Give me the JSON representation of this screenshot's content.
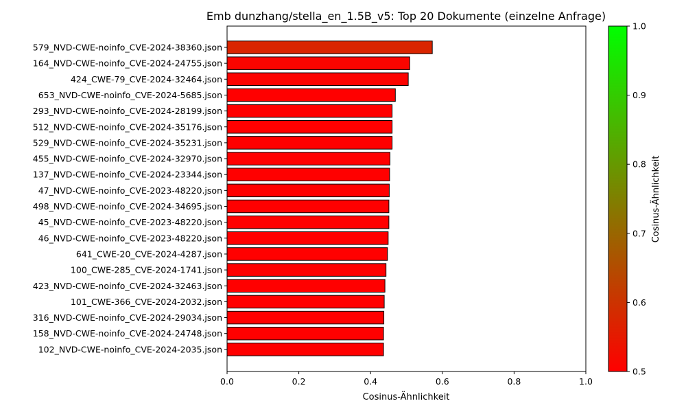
{
  "chart_data": {
    "type": "bar",
    "orientation": "horizontal",
    "title": "Emb dunzhang/stella_en_1.5B_v5: Top 20 Dokumente (einzelne Anfrage)",
    "xlabel": "Cosinus-Ähnlichkeit",
    "xlim": [
      0.0,
      1.0
    ],
    "xticks": [
      "0.0",
      "0.2",
      "0.4",
      "0.6",
      "0.8",
      "1.0"
    ],
    "categories": [
      "579_NVD-CWE-noinfo_CVE-2024-38360.json",
      "164_NVD-CWE-noinfo_CVE-2024-24755.json",
      "424_CWE-79_CVE-2024-32464.json",
      "653_NVD-CWE-noinfo_CVE-2024-5685.json",
      "293_NVD-CWE-noinfo_CVE-2024-28199.json",
      "512_NVD-CWE-noinfo_CVE-2024-35176.json",
      "529_NVD-CWE-noinfo_CVE-2024-35231.json",
      "455_NVD-CWE-noinfo_CVE-2024-32970.json",
      "137_NVD-CWE-noinfo_CVE-2024-23344.json",
      "47_NVD-CWE-noinfo_CVE-2023-48220.json",
      "498_NVD-CWE-noinfo_CVE-2024-34695.json",
      "45_NVD-CWE-noinfo_CVE-2023-48220.json",
      "46_NVD-CWE-noinfo_CVE-2023-48220.json",
      "641_CWE-20_CVE-2024-4287.json",
      "100_CWE-285_CVE-2024-1741.json",
      "423_NVD-CWE-noinfo_CVE-2024-32463.json",
      "101_CWE-366_CVE-2024-2032.json",
      "316_NVD-CWE-noinfo_CVE-2024-29034.json",
      "158_NVD-CWE-noinfo_CVE-2024-24748.json",
      "102_NVD-CWE-noinfo_CVE-2024-2035.json"
    ],
    "values": [
      0.572,
      0.509,
      0.505,
      0.469,
      0.46,
      0.46,
      0.46,
      0.454,
      0.453,
      0.452,
      0.451,
      0.451,
      0.449,
      0.447,
      0.443,
      0.44,
      0.438,
      0.437,
      0.436,
      0.436
    ],
    "colorbar": {
      "label": "Cosinus-Ähnlichkeit",
      "range": [
        0.5,
        1.0
      ],
      "ticks": [
        "0.5",
        "0.6",
        "0.7",
        "0.8",
        "0.9",
        "1.0"
      ],
      "color_low": "#ff0000",
      "color_high": "#00ff00"
    },
    "bar_edge_color": "#000000",
    "grid": false
  }
}
